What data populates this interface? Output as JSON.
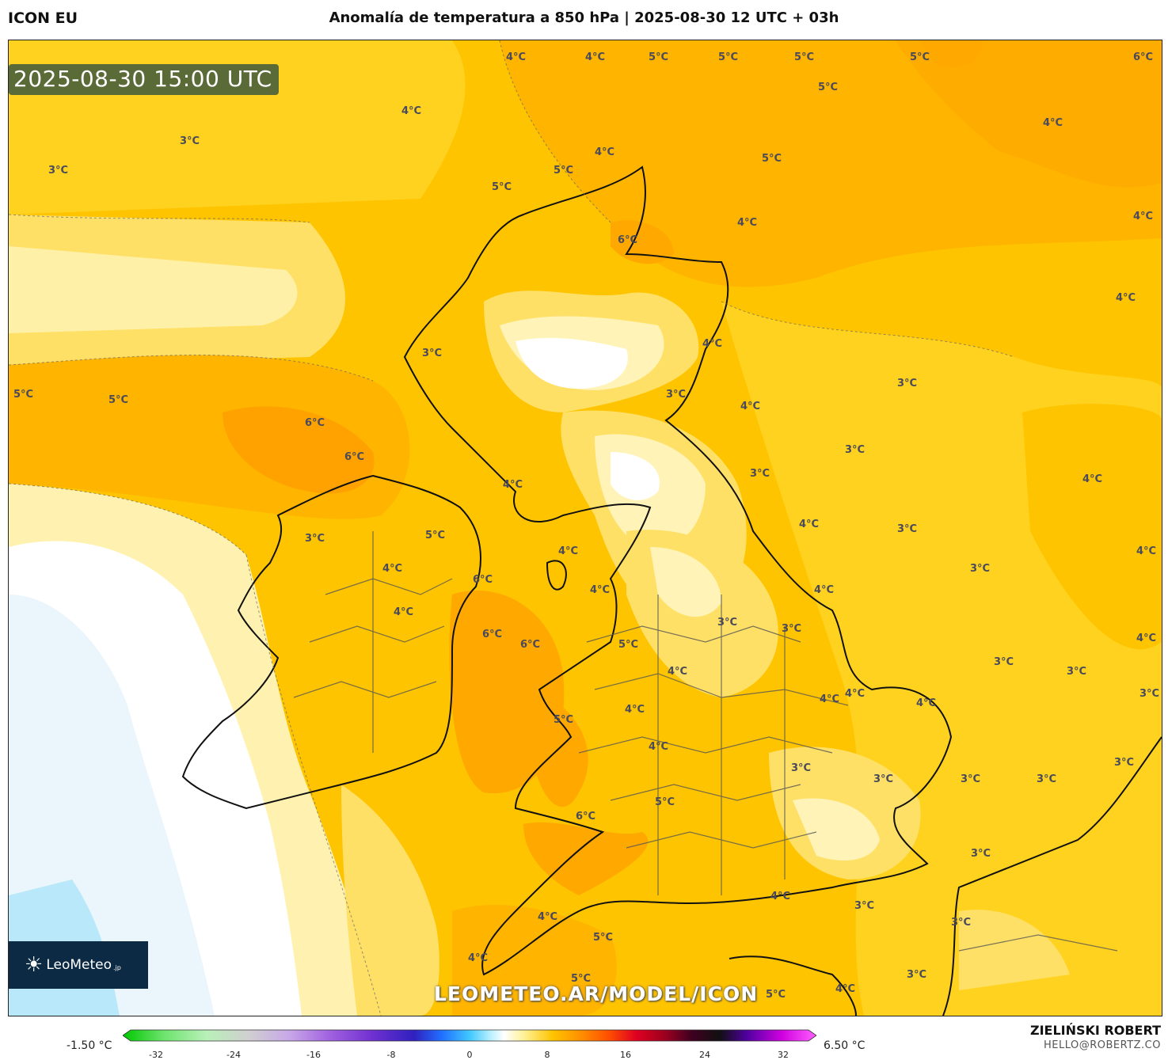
{
  "header": {
    "model": "ICON EU",
    "title": "Anomalía de temperatura a 850 hPa | 2025-08-30 12 UTC + 03h"
  },
  "map": {
    "valid_time": "2025-08-30 15:00 UTC",
    "watermark": "LEOMETEO.AR/MODEL/ICON",
    "logo": {
      "icon": "sun-icon",
      "text": "LeoMeteo",
      "tld": ".jp"
    },
    "contour_labels": [
      {
        "text": "4°C"
      },
      {
        "text": "4°C"
      },
      {
        "text": "5°C"
      },
      {
        "text": "5°C"
      },
      {
        "text": "5°C"
      },
      {
        "text": "5°C"
      },
      {
        "text": "6°C"
      },
      {
        "text": "5°C"
      },
      {
        "text": "4°C"
      },
      {
        "text": "3°C"
      },
      {
        "text": "3°C"
      },
      {
        "text": "4°C"
      },
      {
        "text": "5°C"
      },
      {
        "text": "5°C"
      },
      {
        "text": "5°C"
      },
      {
        "text": "4°C"
      },
      {
        "text": "4°C"
      },
      {
        "text": "4°C"
      },
      {
        "text": "6°C"
      },
      {
        "text": "4°C"
      },
      {
        "text": "4°C"
      },
      {
        "text": "3°C"
      },
      {
        "text": "5°C"
      },
      {
        "text": "5°C"
      },
      {
        "text": "3°C"
      },
      {
        "text": "3°C"
      },
      {
        "text": "6°C"
      },
      {
        "text": "4°C"
      },
      {
        "text": "6°C"
      },
      {
        "text": "3°C"
      },
      {
        "text": "4°C"
      },
      {
        "text": "3°C"
      },
      {
        "text": "4°C"
      },
      {
        "text": "4°C"
      },
      {
        "text": "3°C"
      },
      {
        "text": "5°C"
      },
      {
        "text": "3°C"
      },
      {
        "text": "4°C"
      },
      {
        "text": "4°C"
      },
      {
        "text": "3°C"
      },
      {
        "text": "6°C"
      },
      {
        "text": "4°C"
      },
      {
        "text": "4°C"
      },
      {
        "text": "4°C"
      },
      {
        "text": "4°C"
      },
      {
        "text": "3°C"
      },
      {
        "text": "6°C"
      },
      {
        "text": "6°C"
      },
      {
        "text": "5°C"
      },
      {
        "text": "3°C"
      },
      {
        "text": "4°C"
      },
      {
        "text": "3°C"
      },
      {
        "text": "4°C"
      },
      {
        "text": "4°C"
      },
      {
        "text": "4°C"
      },
      {
        "text": "4°C"
      },
      {
        "text": "3°C"
      },
      {
        "text": "5°C"
      },
      {
        "text": "4°C"
      },
      {
        "text": "4°C"
      },
      {
        "text": "3°C"
      },
      {
        "text": "3°C"
      },
      {
        "text": "3°C"
      },
      {
        "text": "3°C"
      },
      {
        "text": "5°C"
      },
      {
        "text": "6°C"
      },
      {
        "text": "3°C"
      },
      {
        "text": "3°C"
      },
      {
        "text": "3°C"
      },
      {
        "text": "4°C"
      },
      {
        "text": "4°C"
      },
      {
        "text": "3°C"
      },
      {
        "text": "3°C"
      },
      {
        "text": "5°C"
      },
      {
        "text": "4°C"
      },
      {
        "text": "5°C"
      },
      {
        "text": "5°C"
      },
      {
        "text": "3°C"
      },
      {
        "text": "4°C"
      }
    ]
  },
  "colorbar": {
    "min_label": "-1.50 °C",
    "max_label": "6.50 °C",
    "ticks": [
      "-32",
      "-24",
      "-16",
      "-8",
      "0",
      "8",
      "16",
      "24",
      "32"
    ]
  },
  "footer": {
    "author": "ZIELIŃSKI ROBERT",
    "email": "HELLO@ROBERTZ.CO"
  }
}
